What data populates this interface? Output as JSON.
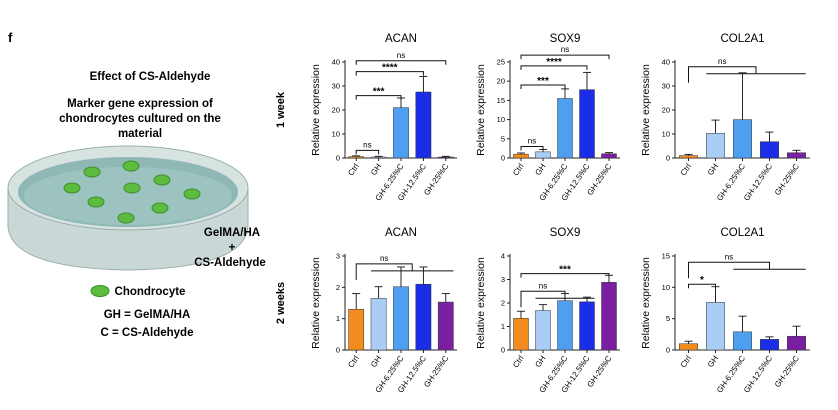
{
  "panel_letter": "f",
  "illustration": {
    "heading": "Effect of CS-Aldehyde",
    "subheading_lines": [
      "Marker gene expression of",
      "chondrocytes cultured on the",
      "material"
    ],
    "material_label_lines": [
      "GelMA/HA",
      "+",
      "CS-Aldehyde"
    ],
    "legend_label": "Chondrocyte",
    "abbrev_1": "GH = GelMA/HA",
    "abbrev_2": "C = CS-Aldehyde",
    "colors": {
      "dish": "#c9dcd9",
      "gel": "#8fb9b6",
      "cell": "#5dbb3f"
    }
  },
  "row_labels": [
    "1 week",
    "2 weeks"
  ],
  "chart_data": [
    {
      "type": "bar",
      "title": "ACAN",
      "ylabel": "Relative expression",
      "row": "1 week",
      "categories": [
        "Ctrl",
        "GH",
        "GH-6.25%C",
        "GH-12.5%C",
        "GH-25%C"
      ],
      "values": [
        0.6,
        0.4,
        21,
        27.5,
        0.4
      ],
      "errors": [
        0.3,
        0.3,
        4,
        6.5,
        0.3
      ],
      "ylim": [
        0,
        40
      ],
      "yticks": [
        0,
        10,
        20,
        30,
        40
      ],
      "colors": [
        "#f28c1e",
        "#a9cdf5",
        "#4f9ff0",
        "#1a2ee8",
        "#7a1fa2"
      ],
      "significance": [
        {
          "from": 0,
          "to": 1,
          "label": "ns",
          "y": 3.2
        },
        {
          "from": 0,
          "to": 2,
          "label": "***",
          "y": 26
        },
        {
          "from": 0,
          "to": 3,
          "label": "****",
          "y": 36
        },
        {
          "from": 0,
          "to": 4,
          "label": "ns",
          "y": 40.5
        }
      ]
    },
    {
      "type": "bar",
      "title": "SOX9",
      "ylabel": "Relative expression",
      "row": "1 week",
      "categories": [
        "Ctrl",
        "GH",
        "GH-6.25%C",
        "GH-12.5%C",
        "GH-25%C"
      ],
      "values": [
        1,
        1.6,
        15.5,
        17.8,
        1.1
      ],
      "errors": [
        0.3,
        0.6,
        2.5,
        4.5,
        0.3
      ],
      "ylim": [
        0,
        25
      ],
      "yticks": [
        0,
        5,
        10,
        15,
        20,
        25
      ],
      "colors": [
        "#f28c1e",
        "#a9cdf5",
        "#4f9ff0",
        "#1a2ee8",
        "#7a1fa2"
      ],
      "significance": [
        {
          "from": 0,
          "to": 1,
          "label": "ns",
          "y": 3
        },
        {
          "from": 0,
          "to": 2,
          "label": "***",
          "y": 19
        },
        {
          "from": 0,
          "to": 3,
          "label": "****",
          "y": 24
        },
        {
          "from": 0,
          "to": 4,
          "label": "ns",
          "y": 26.8
        }
      ]
    },
    {
      "type": "bar",
      "title": "COL2A1",
      "ylabel": "Relative expression",
      "row": "1 week",
      "categories": [
        "Ctrl",
        "GH",
        "GH-6.25%C",
        "GH-12.5%C",
        "GH-25%C"
      ],
      "values": [
        1,
        10.3,
        16,
        6.8,
        2.2
      ],
      "errors": [
        0.5,
        5.5,
        19.5,
        4,
        1
      ],
      "ylim": [
        0,
        40
      ],
      "yticks": [
        0,
        10,
        20,
        30,
        40
      ],
      "colors": [
        "#f28c1e",
        "#a9cdf5",
        "#4f9ff0",
        "#1a2ee8",
        "#7a1fa2"
      ],
      "significance": [
        {
          "from": 0,
          "to": 4,
          "label": "ns",
          "y": 38,
          "group": true
        }
      ]
    },
    {
      "type": "bar",
      "title": "ACAN",
      "ylabel": "Relative expression",
      "row": "2 weeks",
      "categories": [
        "Ctrl",
        "GH",
        "GH-6.25%C",
        "GH-12.5%C",
        "GH-25%C"
      ],
      "values": [
        1.3,
        1.65,
        2.02,
        2.1,
        1.53
      ],
      "errors": [
        0.5,
        0.37,
        0.63,
        0.55,
        0.27
      ],
      "ylim": [
        0,
        3
      ],
      "yticks": [
        0,
        1,
        2,
        3
      ],
      "colors": [
        "#f28c1e",
        "#a9cdf5",
        "#4f9ff0",
        "#1a2ee8",
        "#7a1fa2"
      ],
      "significance": [
        {
          "from": 0,
          "to": 4,
          "label": "ns",
          "y": 2.75,
          "group": true
        }
      ]
    },
    {
      "type": "bar",
      "title": "SOX9",
      "ylabel": "Relative expression",
      "row": "2 weeks",
      "categories": [
        "Ctrl",
        "GH",
        "GH-6.25%C",
        "GH-12.5%C",
        "GH-25%C"
      ],
      "values": [
        1.35,
        1.68,
        2.1,
        2.05,
        2.88
      ],
      "errors": [
        0.3,
        0.25,
        0.3,
        0.2,
        0.3
      ],
      "ylim": [
        0,
        4
      ],
      "yticks": [
        0,
        1,
        2,
        3,
        4
      ],
      "colors": [
        "#f28c1e",
        "#a9cdf5",
        "#4f9ff0",
        "#1a2ee8",
        "#7a1fa2"
      ],
      "significance": [
        {
          "from": 0,
          "to": 3,
          "label": "ns",
          "y": 2.5,
          "group": true
        },
        {
          "from": 0,
          "to": 4,
          "label": "***",
          "y": 3.25
        }
      ]
    },
    {
      "type": "bar",
      "title": "COL2A1",
      "ylabel": "Relative expression",
      "row": "2 weeks",
      "categories": [
        "Ctrl",
        "GH",
        "GH-6.25%C",
        "GH-12.5%C",
        "GH-25%C"
      ],
      "values": [
        1,
        7.6,
        2.9,
        1.7,
        2.2
      ],
      "errors": [
        0.4,
        2.5,
        2.5,
        0.4,
        1.6
      ],
      "ylim": [
        0,
        15
      ],
      "yticks": [
        0,
        5,
        10,
        15
      ],
      "colors": [
        "#f28c1e",
        "#a9cdf5",
        "#4f9ff0",
        "#1a2ee8",
        "#7a1fa2"
      ],
      "significance": [
        {
          "from": 0,
          "to": 1,
          "label": "*",
          "y": 10.5
        },
        {
          "from": 0,
          "to": 4,
          "label": "ns",
          "y": 14,
          "group": true,
          "groupFrom": 2
        }
      ]
    }
  ]
}
